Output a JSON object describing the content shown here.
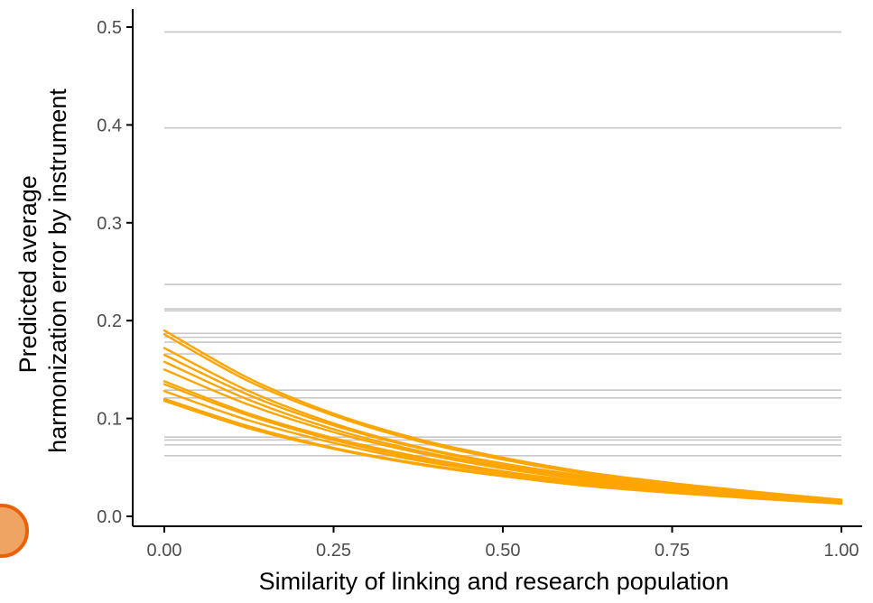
{
  "chart_data": {
    "type": "line",
    "title": "",
    "xlabel": "Similarity of linking and research population",
    "ylabel_lines": [
      "Predicted average",
      "harmonization error by instrument"
    ],
    "xlim": [
      0,
      1
    ],
    "ylim": [
      0,
      0.5
    ],
    "x_ticks": [
      0,
      0.25,
      0.5,
      0.75,
      1
    ],
    "x_tick_labels": [
      "0.00",
      "0.25",
      "0.50",
      "0.75",
      "1.00"
    ],
    "y_ticks": [
      0,
      0.1,
      0.2,
      0.3,
      0.4,
      0.5
    ],
    "y_tick_labels": [
      "0.0",
      "0.1",
      "0.2",
      "0.3",
      "0.4",
      "0.5"
    ],
    "grid": false,
    "reference_lines": {
      "color": "#c8c8c8",
      "x_range": [
        0,
        1
      ],
      "y_values": [
        0.495,
        0.397,
        0.237,
        0.212,
        0.21,
        0.187,
        0.183,
        0.178,
        0.166,
        0.129,
        0.121,
        0.081,
        0.078,
        0.073,
        0.062
      ]
    },
    "curve_color": "#ffa500",
    "x": [
      0,
      0.125,
      0.25,
      0.375,
      0.5,
      0.625,
      0.75,
      0.875,
      1
    ],
    "series": [
      {
        "values": [
          0.19,
          0.141,
          0.105,
          0.079,
          0.06,
          0.045,
          0.034,
          0.025,
          0.017
        ]
      },
      {
        "values": [
          0.186,
          0.138,
          0.103,
          0.077,
          0.058,
          0.043,
          0.032,
          0.024,
          0.016
        ]
      },
      {
        "values": [
          0.172,
          0.128,
          0.095,
          0.071,
          0.054,
          0.041,
          0.031,
          0.023,
          0.016
        ]
      },
      {
        "values": [
          0.165,
          0.124,
          0.093,
          0.07,
          0.053,
          0.04,
          0.03,
          0.022,
          0.015
        ]
      },
      {
        "values": [
          0.158,
          0.119,
          0.089,
          0.067,
          0.051,
          0.038,
          0.029,
          0.022,
          0.015
        ]
      },
      {
        "values": [
          0.15,
          0.114,
          0.086,
          0.065,
          0.049,
          0.037,
          0.028,
          0.021,
          0.015
        ]
      },
      {
        "values": [
          0.138,
          0.105,
          0.08,
          0.061,
          0.046,
          0.035,
          0.027,
          0.021,
          0.015
        ]
      },
      {
        "values": [
          0.135,
          0.103,
          0.078,
          0.059,
          0.045,
          0.034,
          0.026,
          0.02,
          0.014
        ]
      },
      {
        "values": [
          0.128,
          0.098,
          0.075,
          0.057,
          0.044,
          0.033,
          0.025,
          0.019,
          0.014
        ]
      },
      {
        "values": [
          0.12,
          0.092,
          0.07,
          0.054,
          0.042,
          0.032,
          0.024,
          0.019,
          0.014
        ]
      },
      {
        "values": [
          0.118,
          0.09,
          0.069,
          0.053,
          0.041,
          0.031,
          0.024,
          0.018,
          0.013
        ]
      }
    ]
  }
}
